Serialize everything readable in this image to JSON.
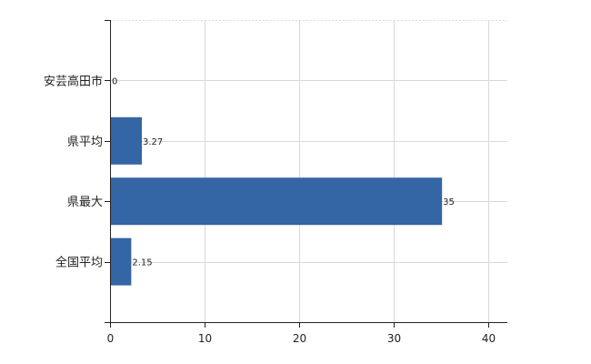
{
  "chart_data": {
    "type": "bar",
    "orientation": "horizontal",
    "title": "",
    "xlabel": "",
    "ylabel": "",
    "categories": [
      "安芸高田市",
      "県平均",
      "県最大",
      "全国平均"
    ],
    "values": [
      0,
      3.27,
      35,
      2.15
    ],
    "data_labels": [
      "0",
      "3.27",
      "35",
      "2.15"
    ],
    "xlim": [
      0,
      42
    ],
    "x_ticks": [
      0,
      10,
      20,
      30,
      40
    ],
    "x_tick_labels": [
      "0",
      "10",
      "20",
      "30",
      "40"
    ],
    "grid": true,
    "legend": "none",
    "bar_color": "#3465a4",
    "grid_color": "#d9d9d9"
  }
}
